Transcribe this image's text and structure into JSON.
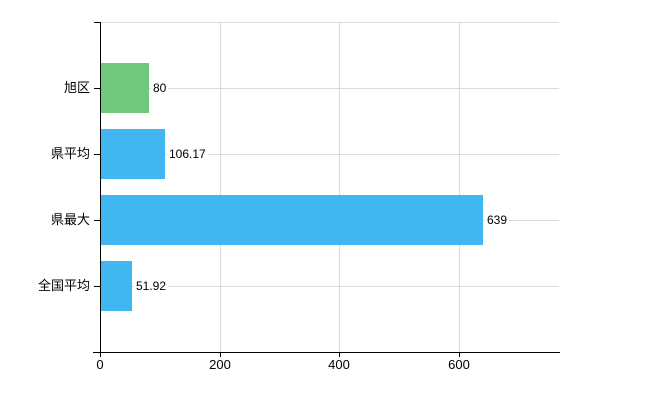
{
  "chart_data": {
    "type": "bar",
    "orientation": "horizontal",
    "title": "",
    "xlabel": "",
    "ylabel": "",
    "categories": [
      "旭区",
      "県平均",
      "県最大",
      "全国平均"
    ],
    "values": [
      80,
      106.17,
      639,
      51.92
    ],
    "value_labels": [
      "80",
      "106.17",
      "639",
      "51.92"
    ],
    "bar_colors": [
      "#6ec97b",
      "#41b7f1",
      "#41b7f1",
      "#41b7f1"
    ],
    "x_ticks": [
      0,
      200,
      400,
      600
    ],
    "x_tick_labels": [
      "0",
      "200",
      "400",
      "600"
    ],
    "xlim": [
      0,
      767
    ],
    "grid": true,
    "legend": false,
    "background_color": "#ffffff",
    "grid_color": "#dcdcdc",
    "axis_color": "#000000",
    "text_color": "#000000"
  }
}
